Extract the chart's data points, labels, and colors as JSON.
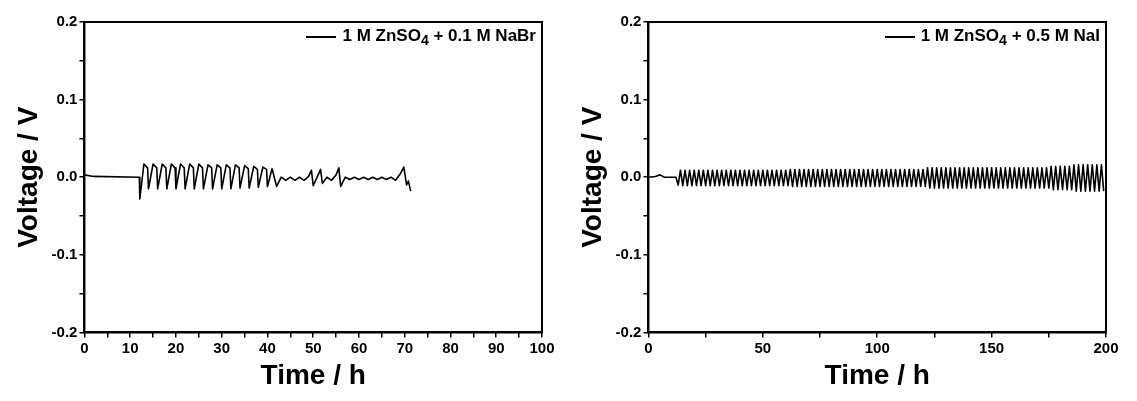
{
  "chart_data": [
    {
      "type": "line",
      "xlabel": "Time / h",
      "ylabel": "Voltage / V",
      "xlim": [
        0,
        100
      ],
      "ylim": [
        -0.2,
        0.2
      ],
      "xticks": [
        0,
        10,
        20,
        30,
        40,
        50,
        60,
        70,
        80,
        90,
        100,
        {
          "value": 5,
          "label": null
        },
        {
          "value": 15,
          "label": null
        },
        {
          "value": 25,
          "label": null
        },
        {
          "value": 35,
          "label": null
        },
        {
          "value": 45,
          "label": null
        },
        {
          "value": 55,
          "label": null
        },
        {
          "value": 65,
          "label": null
        },
        {
          "value": 75,
          "label": null
        },
        {
          "value": 85,
          "label": null
        },
        {
          "value": 95,
          "label": null
        }
      ],
      "yticks": [
        {
          "value": -0.2,
          "label": "-0.2"
        },
        {
          "value": -0.1,
          "label": "-0.1"
        },
        {
          "value": 0,
          "label": "0.0"
        },
        {
          "value": 0.1,
          "label": "0.1"
        },
        {
          "value": 0.2,
          "label": "0.2"
        },
        {
          "value": -0.15,
          "label": null
        },
        {
          "value": -0.05,
          "label": null
        },
        {
          "value": 0.05,
          "label": null
        },
        {
          "value": 0.15,
          "label": null
        }
      ],
      "legend": "top right",
      "grid": false,
      "marker": "none",
      "line_style": "solid",
      "series": [
        {
          "name": "1 M ZnSO$_{4}$ + 0.1 M NaBr",
          "color": "#000000",
          "x": [
            0,
            2,
            12,
            12.1,
            13,
            13.8,
            14,
            15,
            15.8,
            16,
            17,
            17.8,
            18,
            19,
            19.8,
            20,
            21,
            21.8,
            22,
            23,
            23.8,
            24,
            25,
            25.8,
            26,
            27,
            27.8,
            28,
            29,
            29.8,
            30,
            31,
            31.8,
            32,
            33,
            33.8,
            34,
            35,
            35.8,
            36,
            37,
            37.8,
            38,
            39,
            39.8,
            40,
            41,
            42,
            43,
            44,
            45,
            46,
            47,
            48,
            49,
            49.6,
            50,
            51,
            51.6,
            52,
            53,
            54,
            55,
            55.6,
            56,
            57,
            58,
            59,
            60,
            61,
            62,
            63,
            64,
            65,
            66,
            67,
            68,
            69,
            69.8,
            70.4,
            70.8,
            71.3
          ],
          "values": [
            0.003,
            0.001,
            0,
            -0.028,
            0.017,
            0.012,
            -0.015,
            0.017,
            0.012,
            -0.015,
            0.017,
            0.012,
            -0.015,
            0.017,
            0.012,
            -0.015,
            0.017,
            0.012,
            -0.015,
            0.017,
            0.012,
            -0.015,
            0.017,
            0.012,
            -0.015,
            0.016,
            0.012,
            -0.015,
            0.016,
            0.012,
            -0.015,
            0.016,
            0.012,
            -0.015,
            0.016,
            0.012,
            -0.014,
            0.015,
            0.011,
            -0.014,
            0.014,
            0.01,
            -0.013,
            0.013,
            0.01,
            -0.012,
            0.011,
            -0.012,
            0,
            -0.004,
            0,
            -0.004,
            0,
            -0.004,
            0.001,
            0.009,
            -0.011,
            0.002,
            0.01,
            -0.008,
            0,
            -0.004,
            0.003,
            0.012,
            -0.012,
            0,
            -0.003,
            0,
            -0.003,
            0,
            -0.003,
            0,
            -0.003,
            0,
            -0.003,
            0,
            -0.004,
            0.004,
            0.013,
            -0.01,
            -0.005,
            -0.018
          ]
        }
      ]
    },
    {
      "type": "line",
      "xlabel": "Time / h",
      "ylabel": "Voltage / V",
      "xlim": [
        0,
        200
      ],
      "ylim": [
        -0.2,
        0.2
      ],
      "xticks": [
        0,
        50,
        100,
        150,
        200,
        {
          "value": 25,
          "label": null
        },
        {
          "value": 75,
          "label": null
        },
        {
          "value": 125,
          "label": null
        },
        {
          "value": 175,
          "label": null
        }
      ],
      "yticks": [
        {
          "value": -0.2,
          "label": "-0.2"
        },
        {
          "value": -0.1,
          "label": "-0.1"
        },
        {
          "value": 0,
          "label": "0.0"
        },
        {
          "value": 0.1,
          "label": "0.1"
        },
        {
          "value": 0.2,
          "label": "0.2"
        },
        {
          "value": -0.15,
          "label": null
        },
        {
          "value": -0.05,
          "label": null
        },
        {
          "value": 0.05,
          "label": null
        },
        {
          "value": 0.15,
          "label": null
        }
      ],
      "legend": "top right",
      "grid": false,
      "marker": "none",
      "line_style": "solid",
      "series": [
        {
          "name": "1 M ZnSO$_{4}$ + 0.5 M NaI",
          "color": "#000000",
          "x": [
            0,
            3,
            5,
            7,
            12,
            13,
            14,
            15,
            16,
            17,
            18,
            19,
            20,
            21,
            22,
            23,
            24,
            25,
            26,
            27,
            28,
            29,
            30,
            31,
            32,
            33,
            34,
            35,
            36,
            37,
            38,
            39,
            40,
            41,
            42,
            43,
            44,
            45,
            46,
            47,
            48,
            49,
            50,
            51,
            52,
            53,
            54,
            55,
            56,
            57,
            58,
            59,
            60,
            61,
            62,
            63,
            64,
            65,
            66,
            67,
            68,
            69,
            70,
            71,
            72,
            73,
            74,
            75,
            76,
            77,
            78,
            79,
            80,
            81,
            82,
            83,
            84,
            85,
            86,
            87,
            88,
            89,
            90,
            91,
            92,
            93,
            94,
            95,
            96,
            97,
            98,
            99,
            100,
            101,
            102,
            103,
            104,
            105,
            106,
            107,
            108,
            109,
            110,
            111,
            112,
            113,
            114,
            115,
            116,
            117,
            118,
            119,
            120,
            121,
            122,
            123,
            124,
            125,
            126,
            127,
            128,
            129,
            130,
            131,
            132,
            133,
            134,
            135,
            136,
            137,
            138,
            139,
            140,
            141,
            142,
            143,
            144,
            145,
            146,
            147,
            148,
            149,
            150,
            151,
            152,
            153,
            154,
            155,
            156,
            157,
            158,
            159,
            160,
            161,
            162,
            163,
            164,
            165,
            166,
            167,
            168,
            169,
            170,
            171,
            172,
            173,
            174,
            175,
            176,
            177,
            178,
            179,
            180,
            181,
            182,
            183,
            184,
            185,
            186,
            187,
            188,
            189,
            190,
            191,
            192,
            193,
            194,
            195,
            196,
            197,
            198,
            199
          ],
          "values": [
            0,
            0.001,
            0.003,
            0,
            0,
            -0.01,
            0.009,
            -0.011,
            0.009,
            -0.011,
            0.009,
            -0.011,
            0.009,
            -0.011,
            0.009,
            -0.011,
            0.009,
            -0.011,
            0.009,
            -0.011,
            0.009,
            -0.011,
            0.009,
            -0.011,
            0.009,
            -0.011,
            0.009,
            -0.011,
            0.009,
            -0.011,
            0.009,
            -0.011,
            0.009,
            -0.011,
            0.009,
            -0.011,
            0.009,
            -0.011,
            0.009,
            -0.011,
            0.009,
            -0.011,
            0.009,
            -0.011,
            0.009,
            -0.011,
            0.009,
            -0.011,
            0.009,
            -0.011,
            0.009,
            -0.011,
            0.009,
            -0.011,
            0.01,
            -0.012,
            0.01,
            -0.012,
            0.01,
            -0.012,
            0.01,
            -0.012,
            0.01,
            -0.012,
            0.01,
            -0.012,
            0.01,
            -0.012,
            0.01,
            -0.012,
            0.01,
            -0.012,
            0.01,
            -0.012,
            0.01,
            -0.012,
            0.01,
            -0.012,
            0.01,
            -0.012,
            0.01,
            -0.012,
            0.01,
            -0.012,
            0.01,
            -0.012,
            0.01,
            -0.012,
            0.01,
            -0.012,
            0.01,
            -0.012,
            0.01,
            -0.012,
            0.01,
            -0.012,
            0.01,
            -0.012,
            0.01,
            -0.012,
            0.01,
            -0.012,
            0.01,
            -0.012,
            0.01,
            -0.012,
            0.01,
            -0.012,
            0.01,
            -0.012,
            0.01,
            -0.012,
            0.01,
            -0.012,
            0.012,
            -0.014,
            0.012,
            -0.014,
            0.012,
            -0.014,
            0.012,
            -0.014,
            0.012,
            -0.014,
            0.012,
            -0.014,
            0.012,
            -0.014,
            0.012,
            -0.014,
            0.012,
            -0.014,
            0.012,
            -0.014,
            0.012,
            -0.014,
            0.012,
            -0.014,
            0.012,
            -0.014,
            0.012,
            -0.014,
            0.012,
            -0.014,
            0.012,
            -0.014,
            0.012,
            -0.014,
            0.012,
            -0.014,
            0.012,
            -0.014,
            0.012,
            -0.014,
            0.012,
            -0.014,
            0.012,
            -0.014,
            0.012,
            -0.014,
            0.012,
            -0.014,
            0.012,
            -0.014,
            0.012,
            -0.014,
            0.012,
            -0.014,
            0.014,
            -0.016,
            0.014,
            -0.016,
            0.014,
            -0.016,
            0.014,
            -0.016,
            0.014,
            -0.016,
            0.016,
            -0.018,
            0.016,
            -0.018,
            0.016,
            -0.018,
            0.016,
            -0.018,
            0.016,
            -0.018,
            0.016,
            -0.018,
            0.016,
            -0.018
          ]
        }
      ]
    }
  ]
}
